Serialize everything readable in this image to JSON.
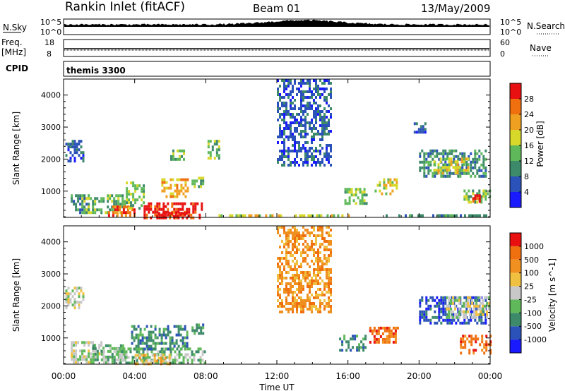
{
  "header": {
    "title": "Rankin Inlet (fitACF)",
    "beam": "Beam 01",
    "date": "13/May/2009"
  },
  "top_panels": {
    "nsky": {
      "left_label": "N.Sky",
      "left_ticks": [
        "10^5",
        "10^0"
      ],
      "right_label": "N.Search",
      "right_ticks": [
        "10^5",
        "10^0"
      ]
    },
    "freq": {
      "left_label_1": "Freq.",
      "left_label_2": "[MHz]",
      "left_ticks": [
        "18",
        "8"
      ],
      "right_label": "Nave",
      "right_ticks": [
        "60",
        "0"
      ]
    },
    "cpid": {
      "label": "CPID",
      "value": "themis 3300"
    }
  },
  "x_axis": {
    "label": "Time UT",
    "ticks": [
      "00:00",
      "04:00",
      "08:00",
      "12:00",
      "16:00",
      "20:00",
      "00:00"
    ]
  },
  "chart_data": [
    {
      "type": "heatmap",
      "name": "power",
      "ylabel": "Slant Range [km]",
      "xlim": [
        0,
        24
      ],
      "ylim": [
        180,
        4500
      ],
      "yticks": [
        "1000",
        "2000",
        "3000",
        "4000"
      ],
      "colorbar_label": "Power [dB]",
      "colorbar_ticks": [
        "4",
        "8",
        "12",
        "16",
        "20",
        "24",
        "28"
      ],
      "colors": [
        "#1a1aff",
        "#2b52b8",
        "#3d8a6a",
        "#5fb85a",
        "#d8d82a",
        "#f0a020",
        "#f07010",
        "#e81010"
      ],
      "regions": [
        {
          "t": [
            0.1,
            1.1
          ],
          "r": [
            1950,
            2600
          ],
          "level": 1
        },
        {
          "t": [
            0.4,
            1.4
          ],
          "r": [
            350,
            900
          ],
          "level": 2
        },
        {
          "t": [
            1.0,
            3.5
          ],
          "r": [
            300,
            900
          ],
          "level": 3
        },
        {
          "t": [
            2.5,
            4.0
          ],
          "r": [
            250,
            550
          ],
          "level": 6
        },
        {
          "t": [
            3.5,
            4.5
          ],
          "r": [
            500,
            1300
          ],
          "level": 3
        },
        {
          "t": [
            4.5,
            7.8
          ],
          "r": [
            200,
            650
          ],
          "level": 7
        },
        {
          "t": [
            5.2,
            7.0
          ],
          "r": [
            200,
            350
          ],
          "level": 8
        },
        {
          "t": [
            5.5,
            7.0
          ],
          "r": [
            850,
            1400
          ],
          "level": 5
        },
        {
          "t": [
            7.2,
            7.9
          ],
          "r": [
            1150,
            1450
          ],
          "level": 3
        },
        {
          "t": [
            6.0,
            6.8
          ],
          "r": [
            1950,
            2300
          ],
          "level": 3
        },
        {
          "t": [
            8.1,
            8.8
          ],
          "r": [
            2000,
            2600
          ],
          "level": 3
        },
        {
          "t": [
            8.6,
            16.0
          ],
          "r": [
            200,
            280
          ],
          "level": 4
        },
        {
          "t": [
            12.0,
            15.0
          ],
          "r": [
            1800,
            4500
          ],
          "level": 1
        },
        {
          "t": [
            15.8,
            17.0
          ],
          "r": [
            650,
            1100
          ],
          "level": 3
        },
        {
          "t": [
            17.5,
            18.8
          ],
          "r": [
            950,
            1400
          ],
          "level": 4
        },
        {
          "t": [
            18.0,
            23.8
          ],
          "r": [
            200,
            280
          ],
          "level": 2
        },
        {
          "t": [
            20.0,
            23.7
          ],
          "r": [
            1450,
            2300
          ],
          "level": 2
        },
        {
          "t": [
            20.8,
            22.8
          ],
          "r": [
            1550,
            2050
          ],
          "level": 4
        },
        {
          "t": [
            22.5,
            24.0
          ],
          "r": [
            650,
            1050
          ],
          "level": 3
        },
        {
          "t": [
            23.0,
            23.4
          ],
          "r": [
            650,
            900
          ],
          "level": 7
        },
        {
          "t": [
            19.7,
            20.4
          ],
          "r": [
            2800,
            3150
          ],
          "level": 1
        }
      ]
    },
    {
      "type": "heatmap",
      "name": "velocity",
      "ylabel": "Slant Range [km]",
      "xlim": [
        0,
        24
      ],
      "ylim": [
        180,
        4500
      ],
      "yticks": [
        "1000",
        "2000",
        "3000",
        "4000"
      ],
      "colorbar_label": "Velocity [m s^-1]",
      "colorbar_ticks": [
        "1000",
        "500",
        "100",
        "25",
        "-25",
        "-100",
        "-500",
        "-1000"
      ],
      "colors": [
        "#1a1aff",
        "#2b52b8",
        "#3d8a6a",
        "#5fb85a",
        "#c8c8c8",
        "#f0c040",
        "#f09020",
        "#f07010",
        "#e81010"
      ],
      "regions": [
        {
          "t": [
            0.1,
            1.1
          ],
          "r": [
            1950,
            2600
          ],
          "level": 4
        },
        {
          "t": [
            0.4,
            2.2
          ],
          "r": [
            200,
            900
          ],
          "level": 4
        },
        {
          "t": [
            1.5,
            3.5
          ],
          "r": [
            200,
            800
          ],
          "level": 3
        },
        {
          "t": [
            3.0,
            8.0
          ],
          "r": [
            200,
            700
          ],
          "level": 3
        },
        {
          "t": [
            4.0,
            6.0
          ],
          "r": [
            220,
            500
          ],
          "level": 5
        },
        {
          "t": [
            3.8,
            7.0
          ],
          "r": [
            650,
            1400
          ],
          "level": 2
        },
        {
          "t": [
            7.2,
            7.9
          ],
          "r": [
            1150,
            1450
          ],
          "level": 2
        },
        {
          "t": [
            12.0,
            15.0
          ],
          "r": [
            1800,
            4500
          ],
          "level": 6
        },
        {
          "t": [
            15.5,
            17.0
          ],
          "r": [
            650,
            1100
          ],
          "level": 2
        },
        {
          "t": [
            17.2,
            18.8
          ],
          "r": [
            900,
            1350
          ],
          "level": 7
        },
        {
          "t": [
            20.0,
            23.7
          ],
          "r": [
            1450,
            2300
          ],
          "level": 1
        },
        {
          "t": [
            21.5,
            24.0
          ],
          "r": [
            1600,
            2300
          ],
          "level": 4
        },
        {
          "t": [
            22.3,
            24.0
          ],
          "r": [
            550,
            1100
          ],
          "level": 7
        }
      ]
    }
  ]
}
